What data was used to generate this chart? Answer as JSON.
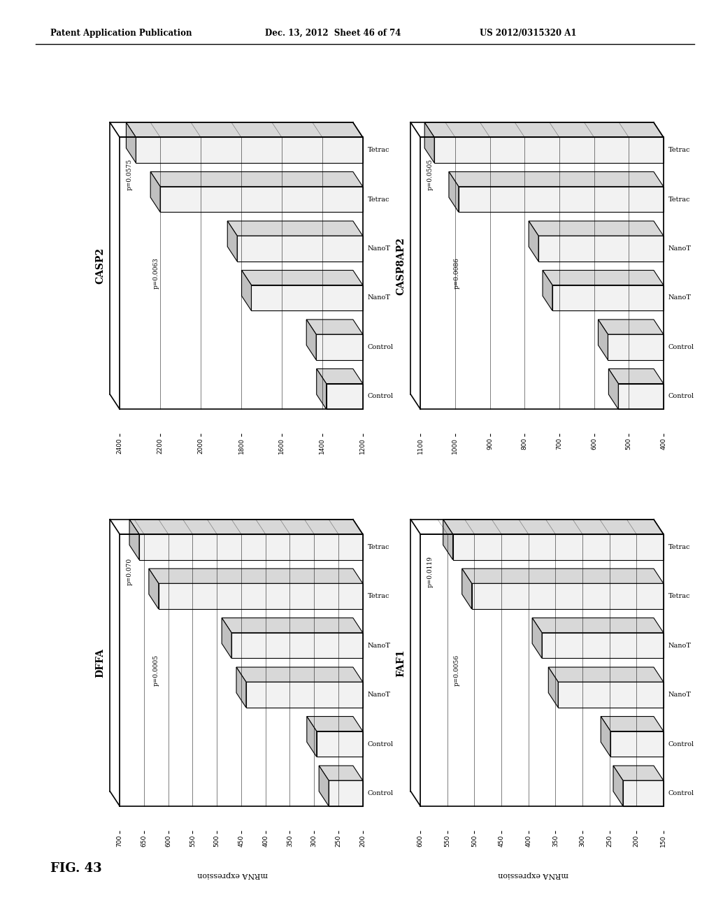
{
  "header_left": "Patent Application Publication",
  "header_mid": "Dec. 13, 2012  Sheet 46 of 74",
  "header_right": "US 2012/0315320 A1",
  "fig_label": "FIG. 43",
  "charts": [
    {
      "title": "CASP2",
      "xlabel": "mRNA expression",
      "xlim": [
        1200,
        2400
      ],
      "xticks": [
        1200,
        1400,
        1600,
        1800,
        2000,
        2200,
        2400
      ],
      "p_top": "p=0.0575",
      "p_mid": "p=0.0063",
      "groups": [
        "Control",
        "Control",
        "NanoT",
        "NanoT",
        "Tetrac",
        "Tetrac"
      ],
      "values": [
        1380,
        1430,
        1750,
        1820,
        2200,
        2320
      ]
    },
    {
      "title": "CASP8AP2",
      "xlabel": "mRNA expression",
      "xlim": [
        400,
        1100
      ],
      "xticks": [
        400,
        500,
        600,
        700,
        800,
        900,
        1000,
        1100
      ],
      "p_top": "p=0.0505",
      "p_mid": "p=0.0086",
      "groups": [
        "Control",
        "Control",
        "NanoT",
        "NanoT",
        "Tetrac",
        "Tetrac"
      ],
      "values": [
        530,
        560,
        720,
        760,
        990,
        1060
      ]
    },
    {
      "title": "DFFA",
      "xlabel": "mRNA expression",
      "xlim": [
        200,
        700
      ],
      "xticks": [
        200,
        250,
        300,
        350,
        400,
        450,
        500,
        550,
        600,
        650,
        700
      ],
      "p_top": "p=0.070",
      "p_mid": "p=0.0005",
      "groups": [
        "Control",
        "Control",
        "NanoT",
        "NanoT",
        "Tetrac",
        "Tetrac"
      ],
      "values": [
        270,
        295,
        440,
        470,
        620,
        660
      ]
    },
    {
      "title": "FAF1",
      "xlabel": "mRNA expression",
      "xlim": [
        150,
        600
      ],
      "xticks": [
        150,
        200,
        250,
        300,
        350,
        400,
        450,
        500,
        550,
        600
      ],
      "p_top": "p=0.0119",
      "p_mid": "p=0.0056",
      "groups": [
        "Control",
        "Control",
        "NanoT",
        "NanoT",
        "Tetrac",
        "Tetrac"
      ],
      "values": [
        225,
        248,
        345,
        375,
        505,
        540
      ]
    }
  ],
  "background_color": "#ffffff"
}
